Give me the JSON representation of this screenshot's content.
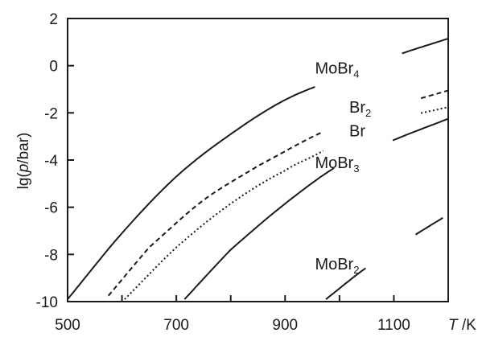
{
  "chart_data": {
    "type": "line",
    "ylabel_parts": {
      "pre": "lg(",
      "var": "p",
      "post": "/bar)"
    },
    "xlabel_parts": {
      "var": "T",
      "post": " /K"
    },
    "xlim": [
      500,
      1200
    ],
    "ylim": [
      -10,
      2
    ],
    "x_ticks": [
      500,
      600,
      700,
      800,
      900,
      1000,
      1100,
      1200
    ],
    "x_tick_labels": [
      "500",
      "700",
      "900",
      "1100"
    ],
    "x_tick_label_values": [
      500,
      700,
      900,
      1100
    ],
    "y_ticks": [
      -10,
      -8,
      -6,
      -4,
      -2,
      0,
      2
    ],
    "y_tick_labels": [
      "-10",
      "-8",
      "-6",
      "-4",
      "-2",
      "0",
      "2"
    ],
    "grid": false,
    "series": [
      {
        "name": "MoBr4",
        "label_base": "MoBr",
        "label_sub": "4",
        "style": "solid",
        "x": [
          500,
          600,
          700,
          800,
          900,
          1000,
          1100,
          1200
        ],
        "y": [
          -9.9,
          -7.1,
          -4.7,
          -2.9,
          -1.45,
          -0.5,
          0.4,
          1.15
        ],
        "gap": [
          955,
          1115
        ]
      },
      {
        "name": "Br2",
        "label_base": "Br",
        "label_sub": "2",
        "style": "dashed",
        "x": [
          575,
          650,
          750,
          850,
          970,
          1100,
          1200
        ],
        "y": [
          -9.75,
          -7.7,
          -5.7,
          -4.25,
          -2.8,
          -1.75,
          -1.05
        ],
        "gap": [
          970,
          1150
        ]
      },
      {
        "name": "Br",
        "label_base": "Br",
        "label_sub": "",
        "style": "dotted",
        "x": [
          605,
          700,
          800,
          900,
          970,
          1100,
          1200
        ],
        "y": [
          -9.9,
          -7.7,
          -5.85,
          -4.45,
          -3.6,
          -2.35,
          -1.75
        ],
        "gap": [
          970,
          1150
        ]
      },
      {
        "name": "MoBr3",
        "label_base": "MoBr",
        "label_sub": "3",
        "style": "solid",
        "x": [
          715,
          800,
          900,
          1000,
          1100,
          1200
        ],
        "y": [
          -9.9,
          -7.8,
          -5.85,
          -4.2,
          -3.15,
          -2.25
        ],
        "gap": [
          990,
          1098
        ]
      },
      {
        "name": "MoBr2",
        "label_base": "MoBr",
        "label_sub": "2",
        "style": "solid",
        "x": [
          975,
          1050,
          1120,
          1190
        ],
        "y": [
          -9.9,
          -8.55,
          -7.45,
          -6.45
        ],
        "gap": [
          1048,
          1140
        ]
      }
    ],
    "series_label_positions": [
      {
        "series": "MoBr4",
        "x": 955,
        "y": -0.1
      },
      {
        "series": "Br2",
        "x": 1018,
        "y": -1.75
      },
      {
        "series": "Br",
        "x": 1018,
        "y": -2.75
      },
      {
        "series": "MoBr3",
        "x": 955,
        "y": -4.1
      },
      {
        "series": "MoBr2",
        "x": 955,
        "y": -8.4
      }
    ]
  }
}
